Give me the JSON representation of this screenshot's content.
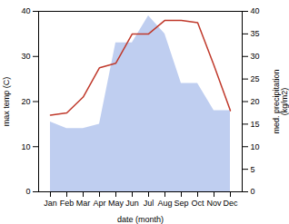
{
  "chart_data": {
    "type": "line",
    "categories": [
      "Jan",
      "Feb",
      "Mar",
      "Apr",
      "May",
      "Jun",
      "Jul",
      "Aug",
      "Sep",
      "Oct",
      "Nov",
      "Dec"
    ],
    "xlabel": "date (month)",
    "ylabel": "max temp (C)",
    "y2label": "med. precipitation\n(kg/m2)",
    "ylim": [
      0,
      40
    ],
    "yticks": [
      0,
      10,
      20,
      30,
      40
    ],
    "y2lim": [
      0,
      40
    ],
    "y2ticks": [
      0,
      5,
      10,
      15,
      20,
      25,
      30,
      35,
      40
    ],
    "grid": false,
    "series": [
      {
        "type": "area",
        "axis": "y2",
        "color": "#b8c9ee",
        "values": [
          15.5,
          14,
          14,
          15,
          33,
          33,
          39,
          35,
          24,
          24,
          18,
          18
        ]
      },
      {
        "type": "line",
        "color": "#c0392b",
        "values": [
          17,
          17.5,
          21,
          27.5,
          28.5,
          35,
          35,
          38,
          38,
          37.5,
          28,
          18
        ]
      }
    ]
  }
}
